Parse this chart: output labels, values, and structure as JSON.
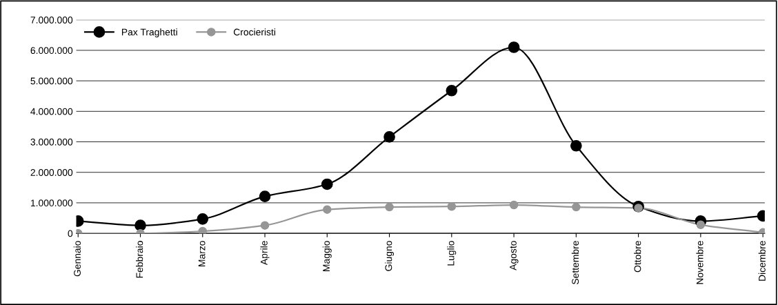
{
  "chart_data": {
    "type": "line",
    "categories": [
      "Gennaio",
      "Febbraio",
      "Marzo",
      "Aprile",
      "Maggio",
      "Giugno",
      "Luglio",
      "Agosto",
      "Settembre",
      "Ottobre",
      "Novembre",
      "Dicembre"
    ],
    "series": [
      {
        "name": "Pax Traghetti",
        "color": "#000000",
        "values": [
          400000,
          260000,
          470000,
          1210000,
          1610000,
          3160000,
          4680000,
          6100000,
          2870000,
          880000,
          400000,
          570000
        ]
      },
      {
        "name": "Crocieristi",
        "color": "#969696",
        "values": [
          0,
          0,
          70000,
          260000,
          780000,
          860000,
          880000,
          930000,
          860000,
          830000,
          280000,
          30000
        ]
      }
    ],
    "ylim": [
      0,
      7000000
    ],
    "yticks": [
      {
        "value": 0,
        "label": "0"
      },
      {
        "value": 1000000,
        "label": "1.000.000"
      },
      {
        "value": 2000000,
        "label": "2.000.000"
      },
      {
        "value": 3000000,
        "label": "3.000.000"
      },
      {
        "value": 4000000,
        "label": "4.000.000"
      },
      {
        "value": 5000000,
        "label": "5.000.000"
      },
      {
        "value": 6000000,
        "label": "6.000.000"
      },
      {
        "value": 7000000,
        "label": "7.000.000"
      }
    ],
    "grid": "y",
    "legend": "top left",
    "marker": "circle",
    "line_style": "solid"
  }
}
